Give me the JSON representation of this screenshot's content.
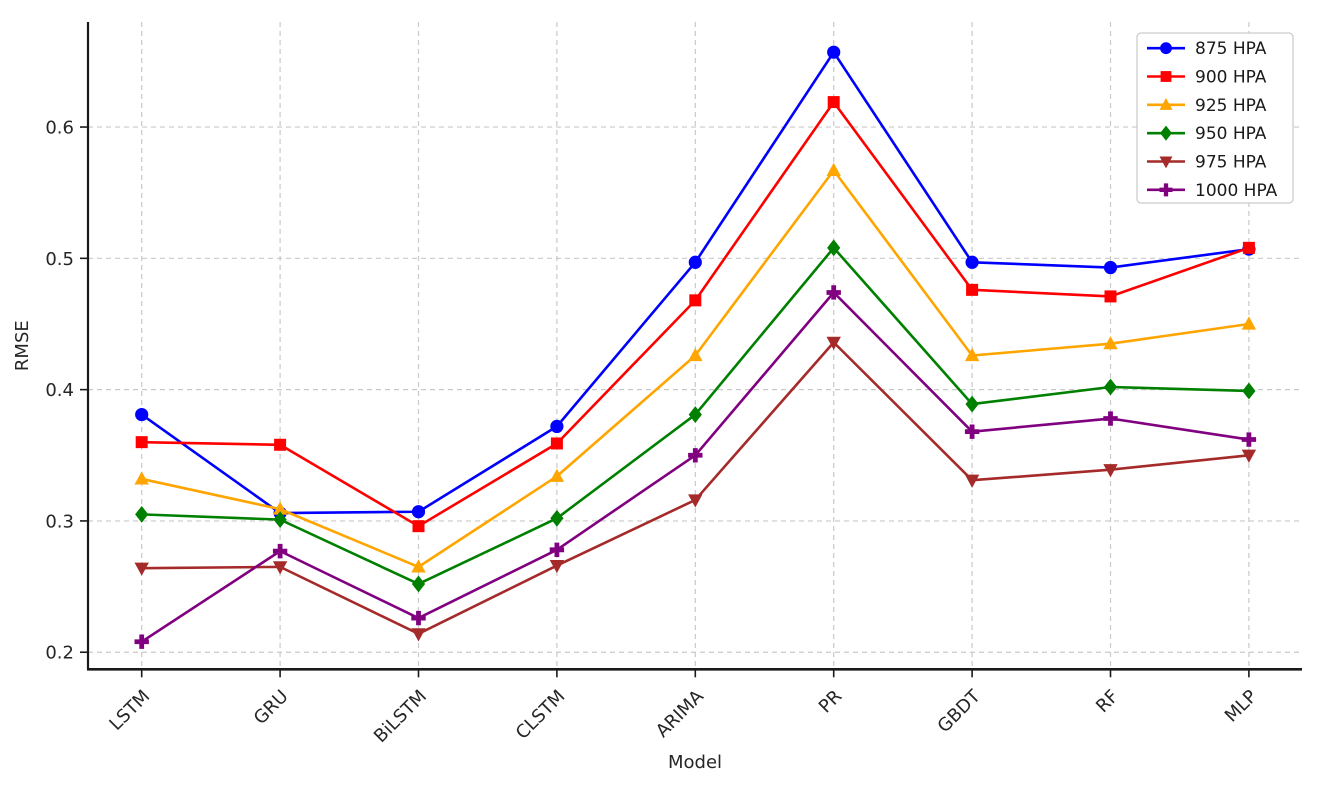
{
  "chart_data": {
    "type": "line",
    "title": "",
    "xlabel": "Model",
    "ylabel": "RMSE",
    "categories": [
      "LSTM",
      "GRU",
      "BiLSTM",
      "CLSTM",
      "ARIMA",
      "PR",
      "GBDT",
      "RF",
      "MLP"
    ],
    "series": [
      {
        "name": "875 HPA",
        "color": "#0000ff",
        "marker": "circle",
        "values": [
          0.381,
          0.306,
          0.307,
          0.372,
          0.497,
          0.657,
          0.497,
          0.493,
          0.507
        ]
      },
      {
        "name": "900 HPA",
        "color": "#ff0000",
        "marker": "square",
        "values": [
          0.36,
          0.358,
          0.296,
          0.359,
          0.468,
          0.619,
          0.476,
          0.471,
          0.508
        ]
      },
      {
        "name": "925 HPA",
        "color": "#ffa500",
        "marker": "triangle-up",
        "values": [
          0.332,
          0.309,
          0.265,
          0.334,
          0.426,
          0.567,
          0.426,
          0.435,
          0.45
        ]
      },
      {
        "name": "950 HPA",
        "color": "#008000",
        "marker": "diamond",
        "values": [
          0.305,
          0.301,
          0.252,
          0.302,
          0.381,
          0.508,
          0.389,
          0.402,
          0.399
        ]
      },
      {
        "name": "975 HPA",
        "color": "#a52a2a",
        "marker": "triangle-down",
        "values": [
          0.264,
          0.265,
          0.214,
          0.266,
          0.316,
          0.436,
          0.331,
          0.339,
          0.35
        ]
      },
      {
        "name": "1000 HPA",
        "color": "#800080",
        "marker": "plus",
        "values": [
          0.208,
          0.277,
          0.226,
          0.278,
          0.35,
          0.474,
          0.368,
          0.378,
          0.362
        ]
      }
    ],
    "yticks": [
      0.2,
      0.3,
      0.4,
      0.5,
      0.6
    ],
    "ytick_labels": [
      "0.2",
      "0.3",
      "0.4",
      "0.5",
      "0.6"
    ],
    "ylim": [
      0.187,
      0.68
    ],
    "grid": "dashed",
    "legend_position": "upper-right",
    "colors": {
      "grid": "#c9c9c9",
      "spine": "#1a1a1a",
      "text": "#262626",
      "legend_border": "#cccccc",
      "background": "#ffffff"
    }
  }
}
